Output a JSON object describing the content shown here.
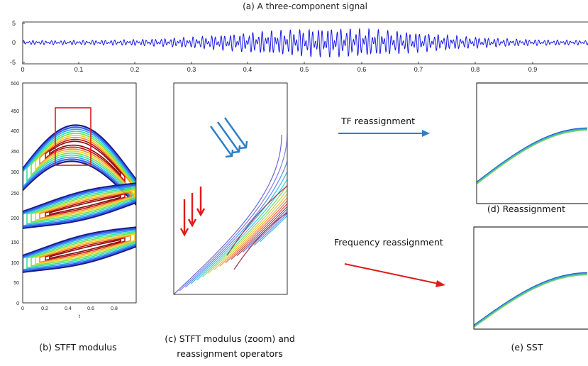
{
  "panels": {
    "a": {
      "title": "(a) A three-component signal",
      "y_ticks": [
        "5",
        "0",
        "-5"
      ],
      "x_ticks": [
        "0",
        "0.1",
        "0.2",
        "0.3",
        "0.4",
        "0.5",
        "0.6",
        "0.7",
        "0.8",
        "0.9"
      ]
    },
    "b": {
      "caption": "(b) STFT modulus",
      "y_ticks": [
        "500",
        "450",
        "400",
        "350",
        "300",
        "250",
        "200",
        "150",
        "100",
        "50",
        "0"
      ],
      "x_ticks": [
        "0",
        "0.2",
        "0.4",
        "0.6",
        "0.8"
      ],
      "x_label": "t"
    },
    "c": {
      "caption_line1": "(c) STFT modulus (zoom) and",
      "caption_line2": "reassignment operators"
    },
    "d": {
      "caption": "(d) Reassignment"
    },
    "e": {
      "caption": "(e) SST"
    }
  },
  "arrows": {
    "tf_label": "TF reassignment",
    "freq_label": "Frequency reassignment"
  },
  "colors": {
    "signal": "#1a1ae6",
    "highlight_box": "#e01b1b",
    "tf_arrow": "#2a7fc8",
    "freq_arrow": "#e01b1b"
  }
}
